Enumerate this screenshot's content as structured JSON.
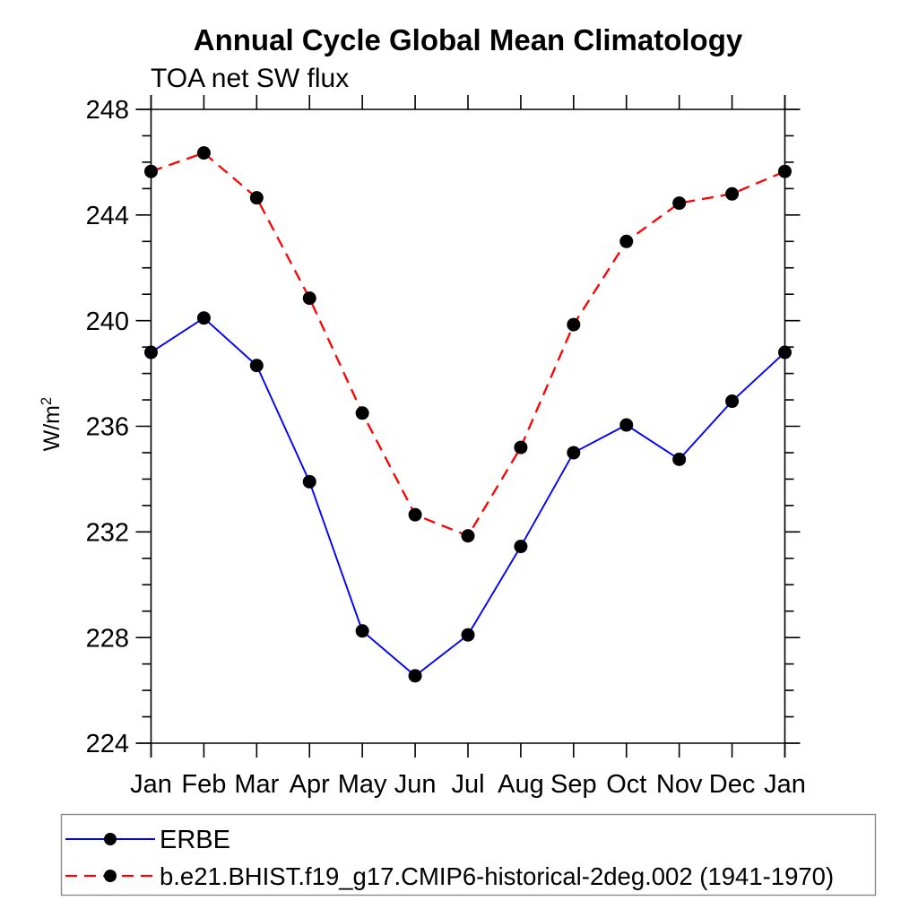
{
  "chart_data": {
    "type": "line",
    "title": "Annual Cycle Global Mean Climatology",
    "subtitle": "TOA net SW flux",
    "ylabel": {
      "base": "W/m",
      "superscript": "2"
    },
    "xlabel": "",
    "categories": [
      "Jan",
      "Feb",
      "Mar",
      "Apr",
      "May",
      "Jun",
      "Jul",
      "Aug",
      "Sep",
      "Oct",
      "Nov",
      "Dec",
      "Jan"
    ],
    "series": [
      {
        "name": "ERBE",
        "color": "#0000ff",
        "line_style": "solid",
        "marker": "filled-circle",
        "marker_color": "#000000",
        "values": [
          238.8,
          240.1,
          238.3,
          233.9,
          228.25,
          226.55,
          228.1,
          231.45,
          235.0,
          236.05,
          234.75,
          236.95,
          238.8
        ]
      },
      {
        "name": "b.e21.BHIST.f19_g17.CMIP6-historical-2deg.002 (1941-1970)",
        "color": "#ff0000",
        "line_style": "dashed",
        "marker": "filled-circle",
        "marker_color": "#000000",
        "values": [
          245.65,
          246.35,
          244.65,
          240.85,
          236.5,
          232.65,
          231.85,
          235.2,
          239.85,
          243.0,
          244.45,
          244.8,
          245.65
        ]
      }
    ],
    "ylim": [
      224,
      248
    ],
    "ytick_major_values": [
      224,
      228,
      232,
      236,
      240,
      244,
      248
    ],
    "ytick_labels": [
      "224",
      "228",
      "232",
      "236",
      "240",
      "244",
      "248"
    ],
    "ytick_minor_step": 1,
    "grid": false,
    "legend_position": "bottom-left-box",
    "axis_color": "#000000",
    "text_color": "#000000"
  }
}
